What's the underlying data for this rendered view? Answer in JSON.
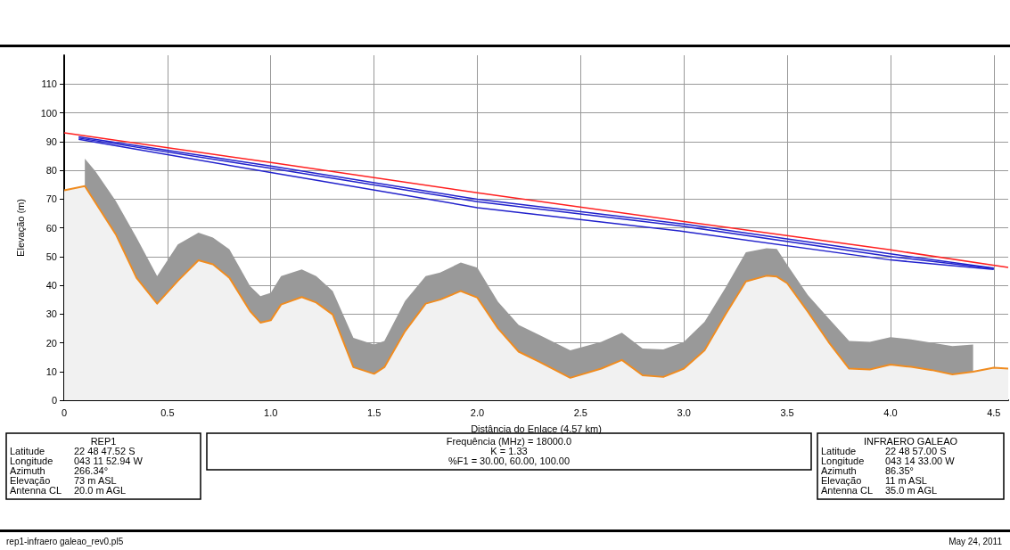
{
  "chart_data": {
    "type": "area",
    "xlabel": "Distância do Enlace (4.57 km)",
    "ylabel": "Elevação (m)",
    "xlim": [
      0,
      4.57
    ],
    "xticks": [
      0,
      0.5,
      {
        "value": 1,
        "label": "1.0"
      },
      1.5,
      {
        "value": 2,
        "label": "2.0"
      },
      2.5,
      {
        "value": 3,
        "label": "3.0"
      },
      3.5,
      {
        "value": 4,
        "label": "4.0"
      },
      4.5
    ],
    "ylim": [
      0,
      120
    ],
    "yticks": [
      0,
      10,
      20,
      30,
      40,
      50,
      60,
      70,
      80,
      90,
      100,
      110
    ],
    "grid": true,
    "marker": "none",
    "series": [
      {
        "color": "#999999",
        "x": [
          0.1,
          0.15,
          0.25,
          0.35,
          0.45,
          0.55,
          0.65,
          0.72,
          0.8,
          0.9,
          0.95,
          1.0,
          1.05,
          1.15,
          1.22,
          1.3,
          1.4,
          1.5,
          1.55,
          1.65,
          1.75,
          1.82,
          1.92,
          2.0,
          2.1,
          2.2,
          2.3,
          2.45,
          2.6,
          2.7,
          2.8,
          2.9,
          3.0,
          3.1,
          3.2,
          3.3,
          3.4,
          3.45,
          3.5,
          3.6,
          3.7,
          3.8,
          3.9,
          4.0,
          4.1,
          4.2,
          4.3,
          4.4
        ],
        "values": [
          84,
          79.8,
          69.3,
          56.6,
          43.2,
          54.2,
          58.3,
          56.6,
          52.5,
          39.7,
          36.2,
          37.4,
          43.2,
          45.5,
          43.2,
          38,
          21.7,
          19.4,
          20.6,
          34.5,
          43.2,
          44.4,
          47.9,
          46.1,
          34.3,
          26.2,
          22.7,
          17.4,
          20.3,
          23.5,
          18,
          17.7,
          20.3,
          27.3,
          39,
          51.5,
          52.9,
          52.6,
          47.1,
          36.6,
          28.5,
          20.6,
          20.3,
          21.9,
          21.2,
          20,
          18.8,
          19.4
        ]
      },
      {
        "color": "#f08c20",
        "x": [
          0,
          0.1,
          0.25,
          0.35,
          0.45,
          0.55,
          0.65,
          0.72,
          0.8,
          0.9,
          0.95,
          1.0,
          1.05,
          1.15,
          1.22,
          1.3,
          1.4,
          1.5,
          1.55,
          1.65,
          1.75,
          1.82,
          1.92,
          2.0,
          2.1,
          2.2,
          2.3,
          2.45,
          2.6,
          2.7,
          2.8,
          2.9,
          3.0,
          3.1,
          3.2,
          3.3,
          3.4,
          3.45,
          3.5,
          3.6,
          3.7,
          3.8,
          3.9,
          4.0,
          4.1,
          4.2,
          4.3,
          4.4,
          4.5,
          4.57
        ],
        "values": [
          73,
          74.5,
          57.7,
          42.6,
          33.6,
          41.5,
          48.7,
          47.3,
          42.6,
          31,
          27,
          27.8,
          33.3,
          35.9,
          34,
          29.8,
          11.5,
          9.2,
          11.5,
          24,
          33.6,
          35,
          38,
          35.7,
          25,
          16.9,
          13.4,
          7.8,
          11,
          14,
          8.7,
          8.1,
          11,
          17.4,
          29.7,
          41.3,
          43.3,
          43,
          40.7,
          30.8,
          20.3,
          11,
          10.7,
          12.4,
          11.6,
          10.5,
          9,
          9.9,
          11.3,
          11
        ]
      },
      {
        "type": "line",
        "color": "#ff2020",
        "x": [
          0,
          1,
          2,
          3,
          4,
          4.57
        ],
        "values": [
          93,
          82.7,
          72.2,
          62.2,
          52.3,
          46.2
        ]
      },
      {
        "type": "line",
        "color": "#2222cc",
        "x": [
          0.07,
          1,
          2,
          3,
          4,
          4.5
        ],
        "values": [
          91.6,
          81.5,
          69.9,
          61.3,
          50.9,
          46
        ]
      },
      {
        "type": "line",
        "color": "#2222cc",
        "x": [
          0.07,
          1,
          2,
          3,
          4,
          4.5
        ],
        "values": [
          91.2,
          80.7,
          69.1,
          60.5,
          50,
          45.8
        ]
      },
      {
        "type": "line",
        "color": "#2222cc",
        "x": [
          0.07,
          1,
          2,
          3,
          4,
          4.5
        ],
        "values": [
          90.8,
          79.2,
          67,
          58.7,
          48.8,
          45.5
        ]
      }
    ],
    "annotations": [
      "REP1\nLatitude\t22 48 47.52 S\nLongitude\t043 11 52.94 W\nAzimuth\t266.34°\nElevação\t73 m ASL\nAntenna CL\t20.0 m AGL",
      "Frequência (MHz) = 18000.0\nK = 1.33\n%F1 = 30.00, 60.00, 100.00",
      "INFRAERO GALEAO\nLatitude\t22 48 57.00 S\nLongitude\t043 14 33.00 W\nAzimuth\t86.35°\nElevação\t11 m ASL\nAntenna CL\t35.0 m AGL",
      "rep1-infraero galeao_rev0.pl5",
      "May 24, 2011"
    ]
  }
}
